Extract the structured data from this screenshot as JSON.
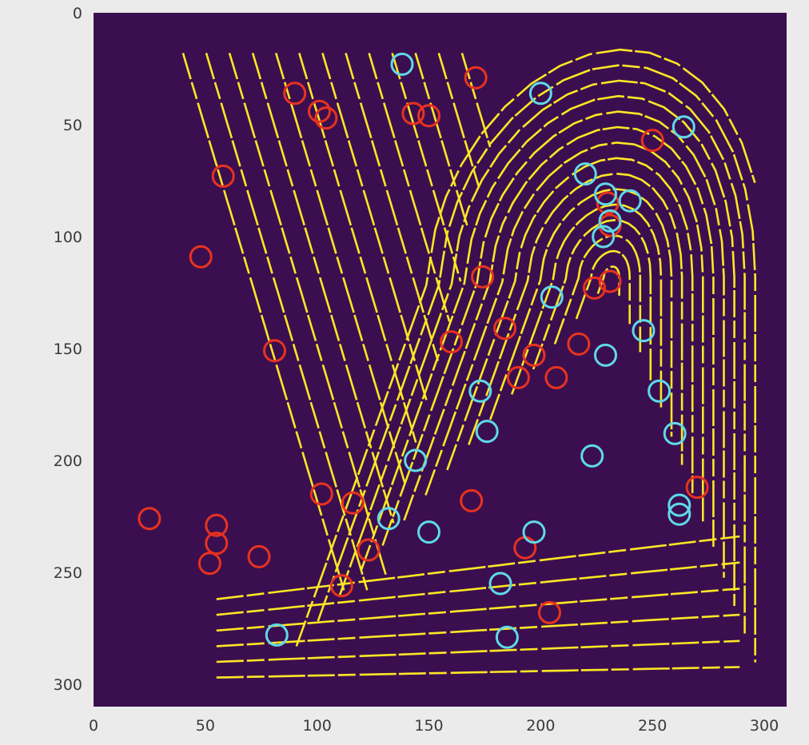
{
  "chart_data": {
    "type": "scatter",
    "title": "",
    "xlabel": "",
    "ylabel": "",
    "xlim": [
      0,
      310
    ],
    "ylim": [
      310,
      0
    ],
    "y_inverted": true,
    "grid": false,
    "x_ticks": [
      0,
      50,
      100,
      150,
      200,
      250,
      300
    ],
    "y_ticks": [
      0,
      50,
      100,
      150,
      200,
      250,
      300
    ],
    "background_image": "fingerprint-ridge-skeleton",
    "colors": {
      "figure_bg": "#ebebeb",
      "image_bg": "#3b0f4f",
      "ridge": "#fde725",
      "termination_marker": "#e8321f",
      "bifurcation_marker": "#5fd9e9"
    },
    "series": [
      {
        "marker_color": "#e8321f",
        "points": [
          [
            171,
            29
          ],
          [
            90,
            36
          ],
          [
            101,
            44
          ],
          [
            104,
            47
          ],
          [
            143,
            45
          ],
          [
            150,
            46
          ],
          [
            250,
            57
          ],
          [
            58,
            73
          ],
          [
            48,
            109
          ],
          [
            174,
            118
          ],
          [
            231,
            120
          ],
          [
            224,
            123
          ],
          [
            184,
            141
          ],
          [
            160,
            147
          ],
          [
            81,
            151
          ],
          [
            217,
            148
          ],
          [
            197,
            153
          ],
          [
            190,
            163
          ],
          [
            207,
            163
          ],
          [
            102,
            215
          ],
          [
            116,
            219
          ],
          [
            169,
            218
          ],
          [
            270,
            212
          ],
          [
            25,
            226
          ],
          [
            55,
            229
          ],
          [
            55,
            237
          ],
          [
            52,
            246
          ],
          [
            74,
            243
          ],
          [
            123,
            240
          ],
          [
            193,
            239
          ],
          [
            111,
            256
          ],
          [
            204,
            268
          ],
          [
            230,
            85
          ],
          [
            231,
            95
          ]
        ]
      },
      {
        "marker_color": "#5fd9e9",
        "points": [
          [
            138,
            23
          ],
          [
            200,
            36
          ],
          [
            264,
            51
          ],
          [
            220,
            72
          ],
          [
            229,
            81
          ],
          [
            240,
            84
          ],
          [
            231,
            93
          ],
          [
            228,
            100
          ],
          [
            205,
            127
          ],
          [
            246,
            142
          ],
          [
            229,
            153
          ],
          [
            253,
            169
          ],
          [
            173,
            169
          ],
          [
            176,
            187
          ],
          [
            260,
            188
          ],
          [
            144,
            200
          ],
          [
            223,
            198
          ],
          [
            132,
            226
          ],
          [
            150,
            232
          ],
          [
            262,
            220
          ],
          [
            262,
            224
          ],
          [
            197,
            232
          ],
          [
            182,
            255
          ],
          [
            82,
            278
          ],
          [
            185,
            279
          ]
        ]
      }
    ]
  }
}
